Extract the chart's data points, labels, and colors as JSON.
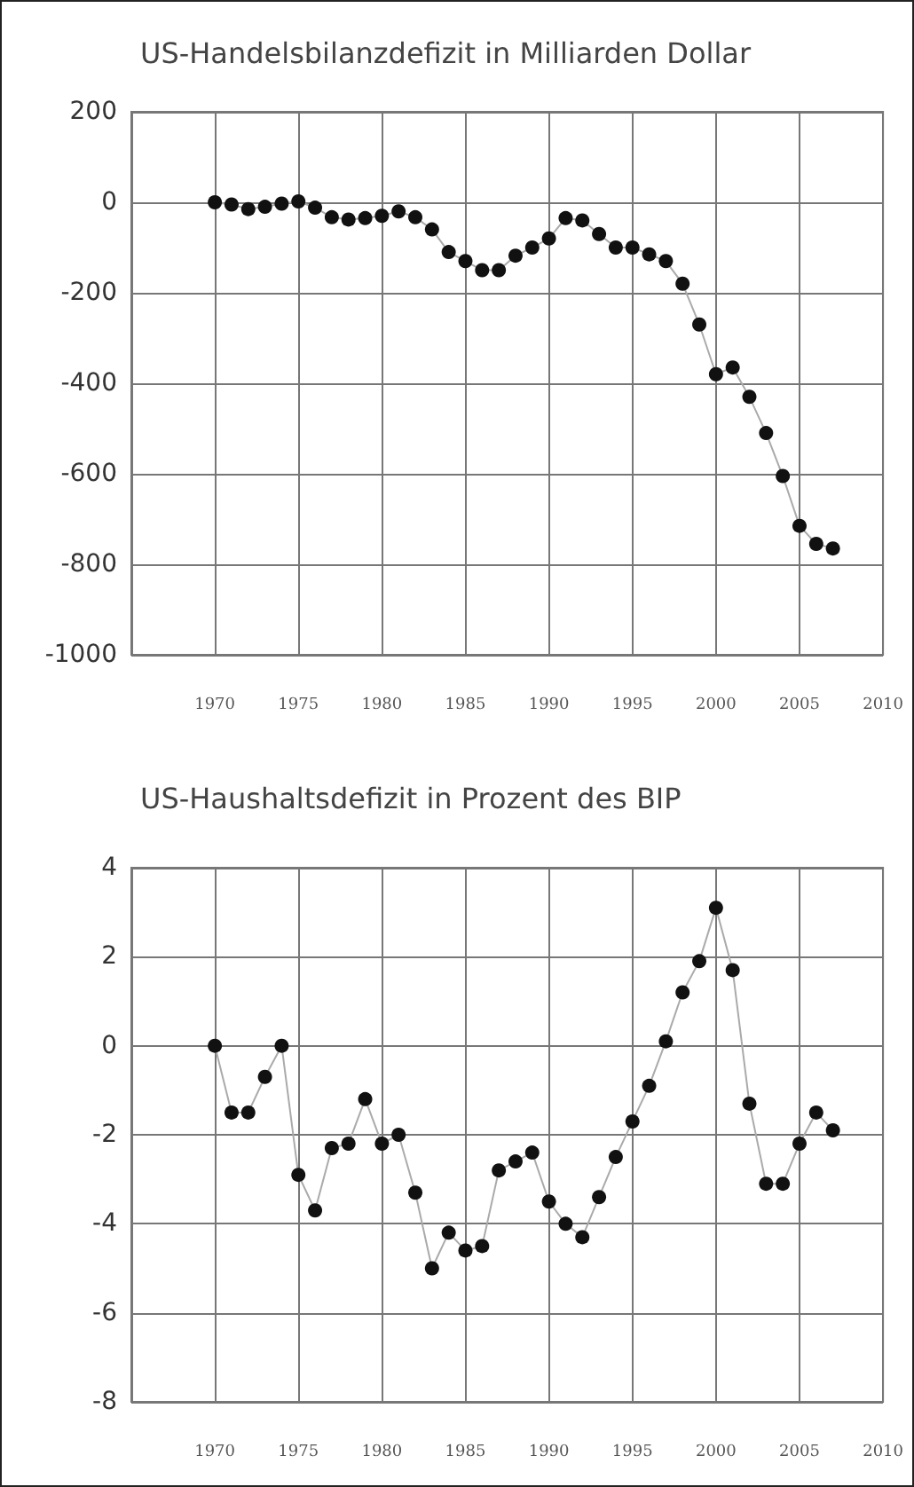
{
  "chart_data": [
    {
      "type": "line",
      "title": "US-Handelsbilanzdefizit in Milliarden Dollar",
      "x": [
        1970,
        1971,
        1972,
        1973,
        1974,
        1975,
        1976,
        1977,
        1978,
        1979,
        1980,
        1981,
        1982,
        1983,
        1984,
        1985,
        1986,
        1987,
        1988,
        1989,
        1990,
        1991,
        1992,
        1993,
        1994,
        1995,
        1996,
        1997,
        1998,
        1999,
        2000,
        2001,
        2002,
        2003,
        2004,
        2005,
        2006,
        2007
      ],
      "series": [
        {
          "color": "#111111",
          "values": [
            0,
            -5,
            -15,
            -10,
            -3,
            2,
            -12,
            -33,
            -38,
            -35,
            -30,
            -20,
            -33,
            -60,
            -110,
            -130,
            -150,
            -150,
            -118,
            -100,
            -80,
            -35,
            -40,
            -70,
            -100,
            -100,
            -115,
            -130,
            -180,
            -270,
            -380,
            -365,
            -430,
            -510,
            -605,
            -715,
            -755,
            -765
          ]
        }
      ],
      "xlim": [
        1965,
        2010
      ],
      "xticks": [
        {
          "value": 1965,
          "label": null
        },
        1970,
        1975,
        1980,
        1985,
        1990,
        1995,
        2000,
        2005,
        2010
      ],
      "ylim": [
        -1000,
        200
      ],
      "yticks": [
        -1000,
        -800,
        -600,
        -400,
        -200,
        0,
        200
      ],
      "grid": true,
      "marker": "circle",
      "line_style": "solid"
    },
    {
      "type": "line",
      "title": "US-Haushaltsdefizit in Prozent des BIP",
      "x": [
        1970,
        1971,
        1972,
        1973,
        1974,
        1975,
        1976,
        1977,
        1978,
        1979,
        1980,
        1981,
        1982,
        1983,
        1984,
        1985,
        1986,
        1987,
        1988,
        1989,
        1990,
        1991,
        1992,
        1993,
        1994,
        1995,
        1996,
        1997,
        1998,
        1999,
        2000,
        2001,
        2002,
        2003,
        2004,
        2005,
        2006,
        2007
      ],
      "series": [
        {
          "color": "#111111",
          "values": [
            0,
            -1.5,
            -1.5,
            -0.7,
            0,
            -2.9,
            -3.7,
            -2.3,
            -2.2,
            -1.2,
            -2.2,
            -2.0,
            -3.3,
            -5.0,
            -4.2,
            -4.6,
            -4.5,
            -2.8,
            -2.6,
            -2.4,
            -3.5,
            -4.0,
            -4.3,
            -3.4,
            -2.5,
            -1.7,
            -0.9,
            0.1,
            1.2,
            1.9,
            3.1,
            1.7,
            -1.3,
            -3.1,
            -3.1,
            -2.2,
            -1.5,
            -1.9
          ]
        }
      ],
      "xlim": [
        1965,
        2010
      ],
      "xticks": [
        {
          "value": 1965,
          "label": null
        },
        1970,
        1975,
        1980,
        1985,
        1990,
        1995,
        2000,
        2005,
        2010
      ],
      "ylim": [
        -8,
        4
      ],
      "yticks": [
        -8,
        -6,
        -4,
        -2,
        0,
        2,
        4
      ],
      "grid": true,
      "marker": "circle",
      "line_style": "solid"
    }
  ]
}
